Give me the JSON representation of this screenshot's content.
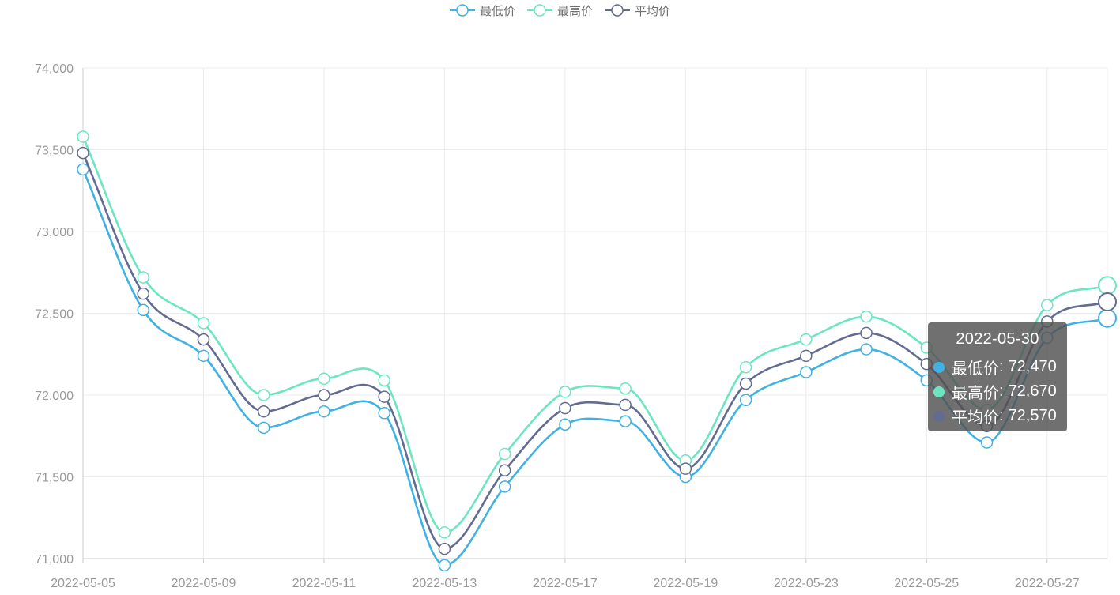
{
  "chart_data": {
    "type": "line",
    "smooth": true,
    "legend_position": "top-center",
    "grid": true,
    "ylim": [
      71000,
      74000
    ],
    "y_ticks": [
      "71,000",
      "71,500",
      "72,000",
      "72,500",
      "73,000",
      "73,500",
      "74,000"
    ],
    "y_tick_values": [
      71000,
      71500,
      72000,
      72500,
      73000,
      73500,
      74000
    ],
    "x_tick_labels": [
      "2022-05-05",
      "2022-05-09",
      "2022-05-11",
      "2022-05-13",
      "2022-05-17",
      "2022-05-19",
      "2022-05-23",
      "2022-05-25",
      "2022-05-27"
    ],
    "x": [
      "2022-05-05",
      "2022-05-06",
      "2022-05-09",
      "2022-05-10",
      "2022-05-11",
      "2022-05-12",
      "2022-05-13",
      "2022-05-16",
      "2022-05-17",
      "2022-05-18",
      "2022-05-19",
      "2022-05-20",
      "2022-05-23",
      "2022-05-24",
      "2022-05-25",
      "2022-05-26",
      "2022-05-27",
      "2022-05-30"
    ],
    "series": [
      {
        "name": "最低价",
        "color": "#3fb1e3",
        "values": [
          73380,
          72520,
          72240,
          71800,
          71900,
          71890,
          70960,
          71440,
          71820,
          71840,
          71500,
          71970,
          72140,
          72280,
          72090,
          71710,
          72350,
          72470
        ]
      },
      {
        "name": "最高价",
        "color": "#6be6c1",
        "values": [
          73580,
          72720,
          72440,
          72000,
          72100,
          72090,
          71160,
          71640,
          72020,
          72040,
          71600,
          72170,
          72340,
          72480,
          72290,
          71910,
          72550,
          72670
        ]
      },
      {
        "name": "平均价",
        "color": "#626c91",
        "values": [
          73480,
          72620,
          72340,
          71900,
          72000,
          71990,
          71060,
          71540,
          71920,
          71940,
          71550,
          72070,
          72240,
          72380,
          72190,
          71810,
          72450,
          72570
        ]
      }
    ],
    "tooltip": {
      "title": "2022-05-30",
      "rows": [
        {
          "label": "最低价",
          "value": "72,470",
          "color": "#3fb1e3"
        },
        {
          "label": "最高价",
          "value": "72,670",
          "color": "#6be6c1"
        },
        {
          "label": "平均价",
          "value": "72,570",
          "color": "#626c91"
        }
      ]
    }
  }
}
